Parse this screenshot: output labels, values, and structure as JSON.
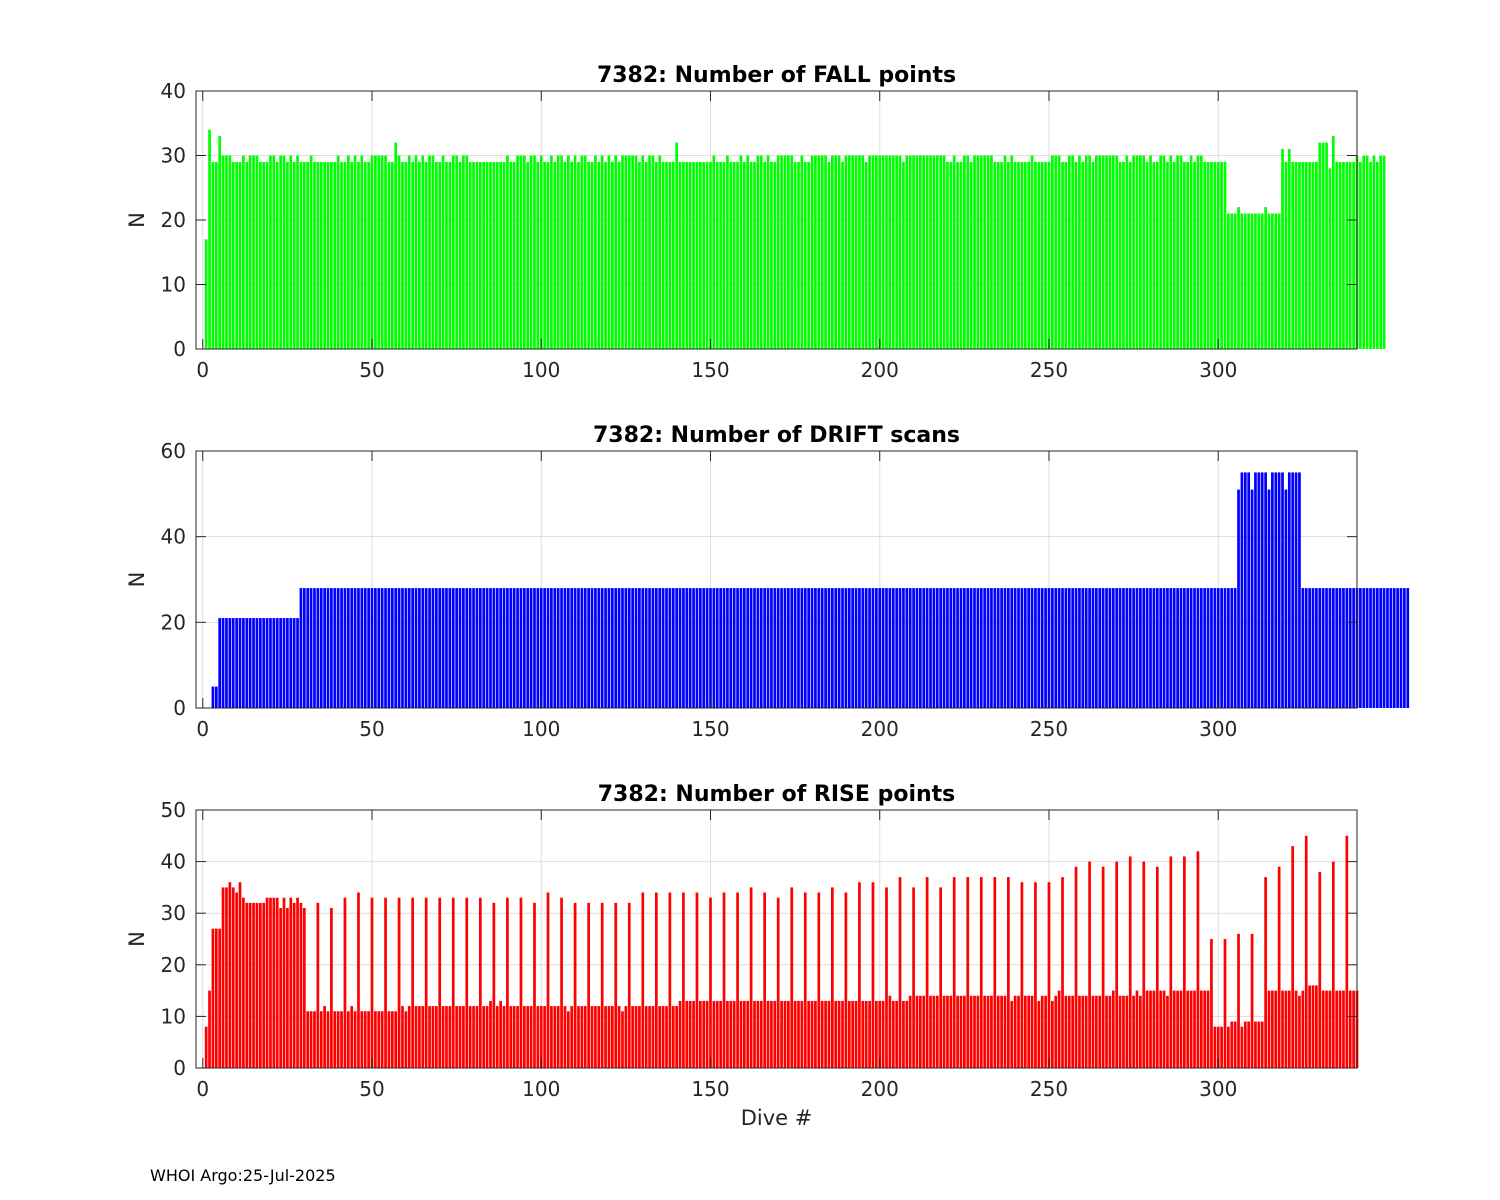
{
  "footer": "WHOI Argo:25-Jul-2025",
  "shared_xlabel": "Dive #",
  "chart_data": [
    {
      "type": "bar",
      "title": "7382: Number of FALL points",
      "xlabel": "",
      "ylabel": "N",
      "xlim": [
        -2,
        341
      ],
      "ylim": [
        0,
        40
      ],
      "xticks": [
        0,
        50,
        100,
        150,
        200,
        250,
        300
      ],
      "yticks": [
        0,
        10,
        20,
        30,
        40
      ],
      "grid": true,
      "color": "#00ff00",
      "x_start": 1,
      "values": [
        17,
        34,
        29,
        29,
        33,
        30,
        30,
        30,
        29,
        29,
        29,
        30,
        29,
        30,
        30,
        30,
        29,
        29,
        29,
        30,
        30,
        29,
        30,
        30,
        29,
        30,
        29,
        30,
        29,
        29,
        29,
        30,
        29,
        29,
        29,
        29,
        29,
        29,
        29,
        30,
        29,
        29,
        30,
        29,
        30,
        29,
        30,
        29,
        29,
        30,
        30,
        30,
        30,
        30,
        29,
        29,
        32,
        30,
        29,
        29,
        30,
        29,
        30,
        29,
        30,
        29,
        30,
        30,
        29,
        29,
        30,
        29,
        29,
        30,
        30,
        29,
        30,
        30,
        29,
        29,
        29,
        29,
        29,
        29,
        29,
        29,
        29,
        29,
        29,
        30,
        29,
        29,
        30,
        30,
        30,
        29,
        30,
        30,
        29,
        30,
        29,
        29,
        30,
        29,
        30,
        30,
        29,
        30,
        29,
        30,
        29,
        30,
        30,
        29,
        29,
        30,
        29,
        30,
        29,
        30,
        29,
        30,
        29,
        30,
        30,
        30,
        30,
        30,
        29,
        30,
        29,
        30,
        30,
        29,
        30,
        29,
        29,
        29,
        29,
        32,
        29,
        29,
        29,
        29,
        29,
        29,
        29,
        29,
        29,
        29,
        30,
        29,
        29,
        29,
        30,
        29,
        29,
        29,
        30,
        29,
        30,
        29,
        29,
        30,
        30,
        29,
        30,
        29,
        29,
        30,
        30,
        30,
        30,
        30,
        29,
        29,
        30,
        29,
        29,
        30,
        30,
        30,
        30,
        30,
        29,
        30,
        30,
        30,
        29,
        30,
        30,
        30,
        30,
        30,
        30,
        29,
        30,
        30,
        30,
        30,
        30,
        30,
        30,
        30,
        30,
        30,
        29,
        30,
        30,
        30,
        30,
        30,
        30,
        30,
        30,
        30,
        30,
        30,
        30,
        29,
        29,
        30,
        29,
        29,
        30,
        30,
        29,
        30,
        30,
        30,
        30,
        30,
        30,
        29,
        29,
        29,
        30,
        29,
        30,
        29,
        29,
        29,
        29,
        29,
        30,
        29,
        29,
        29,
        29,
        29,
        30,
        30,
        30,
        29,
        29,
        30,
        30,
        29,
        30,
        29,
        30,
        30,
        29,
        30,
        30,
        30,
        30,
        30,
        30,
        30,
        29,
        29,
        30,
        29,
        30,
        30,
        30,
        30,
        29,
        30,
        29,
        29,
        30,
        30,
        29,
        30,
        29,
        30,
        30,
        29,
        29,
        30,
        29,
        30,
        30,
        29,
        29,
        29,
        29,
        29,
        29,
        29,
        21,
        21,
        21,
        22,
        21,
        21,
        21,
        21,
        21,
        21,
        21,
        22,
        21,
        21,
        21,
        21,
        31,
        29,
        31,
        29,
        29,
        29,
        29,
        29,
        29,
        29,
        29,
        32,
        32,
        32,
        28,
        33,
        29,
        29,
        29,
        29,
        29,
        29,
        30,
        29,
        30,
        30,
        29,
        30,
        29,
        30,
        30
      ]
    },
    {
      "type": "bar",
      "title": "7382: Number of DRIFT scans",
      "xlabel": "",
      "ylabel": "N",
      "xlim": [
        -2,
        341
      ],
      "ylim": [
        0,
        60
      ],
      "xticks": [
        0,
        50,
        100,
        150,
        200,
        250,
        300
      ],
      "yticks": [
        0,
        20,
        40,
        60
      ],
      "grid": true,
      "color": "#0000ff",
      "x_start": 1,
      "values": [
        0,
        0,
        5,
        5,
        21,
        21,
        21,
        21,
        21,
        21,
        21,
        21,
        21,
        21,
        21,
        21,
        21,
        21,
        21,
        21,
        21,
        21,
        21,
        21,
        21,
        21,
        21,
        21,
        28,
        28,
        28,
        28,
        28,
        28,
        28,
        28,
        28,
        28,
        28,
        28,
        28,
        28,
        28,
        28,
        28,
        28,
        28,
        28,
        28,
        28,
        28,
        28,
        28,
        28,
        28,
        28,
        28,
        28,
        28,
        28,
        28,
        28,
        28,
        28,
        28,
        28,
        28,
        28,
        28,
        28,
        28,
        28,
        28,
        28,
        28,
        28,
        28,
        28,
        28,
        28,
        28,
        28,
        28,
        28,
        28,
        28,
        28,
        28,
        28,
        28,
        28,
        28,
        28,
        28,
        28,
        28,
        28,
        28,
        28,
        28,
        28,
        28,
        28,
        28,
        28,
        28,
        28,
        28,
        28,
        28,
        28,
        28,
        28,
        28,
        28,
        28,
        28,
        28,
        28,
        28,
        28,
        28,
        28,
        28,
        28,
        28,
        28,
        28,
        28,
        28,
        28,
        28,
        28,
        28,
        28,
        28,
        28,
        28,
        28,
        28,
        28,
        28,
        28,
        28,
        28,
        28,
        28,
        28,
        28,
        28,
        28,
        28,
        28,
        28,
        28,
        28,
        28,
        28,
        28,
        28,
        28,
        28,
        28,
        28,
        28,
        28,
        28,
        28,
        28,
        28,
        28,
        28,
        28,
        28,
        28,
        28,
        28,
        28,
        28,
        28,
        28,
        28,
        28,
        28,
        28,
        28,
        28,
        28,
        28,
        28,
        28,
        28,
        28,
        28,
        28,
        28,
        28,
        28,
        28,
        28,
        28,
        28,
        28,
        28,
        28,
        28,
        28,
        28,
        28,
        28,
        28,
        28,
        28,
        28,
        28,
        28,
        28,
        28,
        28,
        28,
        28,
        28,
        28,
        28,
        28,
        28,
        28,
        28,
        28,
        28,
        28,
        28,
        28,
        28,
        28,
        28,
        28,
        28,
        28,
        28,
        28,
        28,
        28,
        28,
        28,
        28,
        28,
        28,
        28,
        28,
        28,
        28,
        28,
        28,
        28,
        28,
        28,
        28,
        28,
        28,
        28,
        28,
        28,
        28,
        28,
        28,
        28,
        28,
        28,
        28,
        28,
        28,
        28,
        28,
        28,
        28,
        28,
        28,
        28,
        28,
        28,
        28,
        28,
        28,
        28,
        28,
        28,
        28,
        28,
        28,
        28,
        28,
        28,
        28,
        28,
        28,
        28,
        28,
        28,
        28,
        28,
        28,
        28,
        28,
        28,
        51,
        55,
        55,
        55,
        51,
        55,
        55,
        55,
        55,
        51,
        55,
        55,
        55,
        55,
        51,
        55,
        55,
        55,
        55,
        28,
        28,
        28,
        28,
        28,
        28,
        28,
        28,
        28,
        28,
        28,
        28,
        28,
        28,
        28,
        28,
        28,
        28,
        28,
        28,
        28,
        28,
        28,
        28,
        28,
        28,
        28,
        28,
        28,
        28,
        28,
        28
      ]
    },
    {
      "type": "bar",
      "title": "7382: Number of RISE points",
      "xlabel": "Dive #",
      "ylabel": "N",
      "xlim": [
        -2,
        341
      ],
      "ylim": [
        0,
        50
      ],
      "xticks": [
        0,
        50,
        100,
        150,
        200,
        250,
        300
      ],
      "yticks": [
        0,
        10,
        20,
        30,
        40,
        50
      ],
      "grid": true,
      "color": "#ff0000",
      "x_start": 1,
      "values": [
        8,
        15,
        27,
        27,
        27,
        35,
        35,
        36,
        35,
        34,
        36,
        33,
        32,
        32,
        32,
        32,
        32,
        32,
        33,
        33,
        33,
        33,
        31,
        33,
        31,
        33,
        32,
        33,
        32,
        31,
        11,
        11,
        11,
        32,
        11,
        12,
        11,
        31,
        11,
        11,
        11,
        33,
        11,
        12,
        11,
        34,
        11,
        11,
        11,
        33,
        11,
        11,
        11,
        33,
        11,
        11,
        11,
        33,
        12,
        11,
        12,
        33,
        12,
        12,
        12,
        33,
        12,
        12,
        12,
        33,
        12,
        12,
        12,
        33,
        12,
        12,
        12,
        33,
        12,
        12,
        12,
        33,
        12,
        12,
        13,
        32,
        12,
        13,
        12,
        33,
        12,
        12,
        12,
        33,
        12,
        12,
        12,
        32,
        12,
        12,
        12,
        34,
        12,
        12,
        12,
        33,
        12,
        11,
        12,
        32,
        12,
        12,
        12,
        32,
        12,
        12,
        12,
        32,
        12,
        12,
        12,
        32,
        12,
        11,
        12,
        32,
        12,
        12,
        12,
        34,
        12,
        12,
        12,
        34,
        12,
        12,
        12,
        34,
        12,
        12,
        13,
        34,
        13,
        13,
        13,
        34,
        13,
        13,
        13,
        33,
        13,
        13,
        13,
        34,
        13,
        13,
        13,
        34,
        13,
        13,
        13,
        35,
        13,
        13,
        13,
        34,
        13,
        13,
        13,
        33,
        13,
        13,
        13,
        35,
        13,
        13,
        13,
        34,
        13,
        13,
        13,
        34,
        13,
        13,
        13,
        35,
        13,
        13,
        13,
        34,
        13,
        13,
        13,
        36,
        13,
        13,
        13,
        36,
        13,
        13,
        13,
        35,
        14,
        13,
        13,
        37,
        13,
        13,
        14,
        35,
        14,
        14,
        14,
        37,
        14,
        14,
        14,
        35,
        14,
        14,
        14,
        37,
        14,
        14,
        14,
        37,
        14,
        14,
        14,
        37,
        14,
        14,
        14,
        37,
        14,
        14,
        14,
        37,
        13,
        14,
        14,
        36,
        14,
        14,
        14,
        36,
        13,
        14,
        14,
        36,
        13,
        14,
        15,
        37,
        14,
        14,
        14,
        39,
        14,
        14,
        14,
        40,
        14,
        14,
        14,
        39,
        14,
        14,
        15,
        40,
        14,
        14,
        14,
        41,
        14,
        15,
        14,
        40,
        15,
        15,
        15,
        39,
        15,
        15,
        14,
        41,
        15,
        15,
        15,
        41,
        15,
        15,
        15,
        42,
        15,
        15,
        15,
        25,
        8,
        8,
        8,
        25,
        8,
        9,
        9,
        26,
        8,
        9,
        9,
        26,
        9,
        9,
        9,
        37,
        15,
        15,
        15,
        39,
        15,
        15,
        15,
        43,
        15,
        14,
        15,
        45,
        16,
        16,
        16,
        38,
        15,
        15,
        15,
        40,
        15,
        15,
        15,
        45,
        15,
        15,
        15
      ]
    }
  ]
}
